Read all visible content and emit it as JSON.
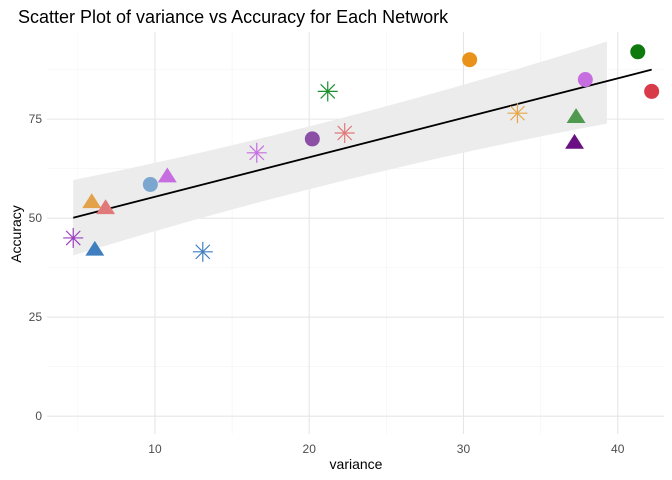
{
  "chart_data": {
    "type": "scatter",
    "title": "Scatter Plot of variance vs Accuracy for Each Network",
    "xlabel": "variance",
    "ylabel": "Accuracy",
    "xlim": [
      3.0,
      43.0
    ],
    "ylim": [
      -4.5,
      97.0
    ],
    "x_ticks": [
      10,
      20,
      30,
      40
    ],
    "y_ticks": [
      0,
      25,
      50,
      75
    ],
    "grid": true,
    "legend": "none",
    "trend_line": {
      "method": "linear",
      "x": [
        4.7,
        42.2
      ],
      "y": [
        50.1,
        87.5
      ],
      "band_lower": [
        40.2,
        74.3
      ],
      "band_upper": [
        60.0,
        94.2
      ],
      "band_x": [
        4.7,
        39.3
      ],
      "color": "#000000",
      "band_color": "#ebebeb"
    },
    "points": [
      {
        "x": 4.7,
        "y": 45,
        "shape": "star",
        "color": "#9b3fbf"
      },
      {
        "x": 5.9,
        "y": 54,
        "shape": "triangle",
        "color": "#e3a14a"
      },
      {
        "x": 6.1,
        "y": 42,
        "shape": "triangle",
        "color": "#3f7fbf"
      },
      {
        "x": 6.8,
        "y": 52.5,
        "shape": "triangle",
        "color": "#e07a7a"
      },
      {
        "x": 9.7,
        "y": 58.5,
        "shape": "circle",
        "color": "#7aa6cf"
      },
      {
        "x": 10.8,
        "y": 60.5,
        "shape": "triangle",
        "color": "#c66ee0"
      },
      {
        "x": 13.1,
        "y": 41.5,
        "shape": "star",
        "color": "#3f7fbf"
      },
      {
        "x": 16.6,
        "y": 66.5,
        "shape": "star",
        "color": "#c66ee0"
      },
      {
        "x": 20.2,
        "y": 70,
        "shape": "circle",
        "color": "#8b4fa6"
      },
      {
        "x": 21.2,
        "y": 82,
        "shape": "star",
        "color": "#1a8f2e"
      },
      {
        "x": 22.3,
        "y": 71.5,
        "shape": "star",
        "color": "#e07a7a"
      },
      {
        "x": 30.4,
        "y": 90,
        "shape": "circle",
        "color": "#e8921a"
      },
      {
        "x": 33.5,
        "y": 76.5,
        "shape": "star",
        "color": "#e8a64a"
      },
      {
        "x": 37.2,
        "y": 69,
        "shape": "triangle",
        "color": "#6a0f84"
      },
      {
        "x": 37.3,
        "y": 75.5,
        "shape": "triangle",
        "color": "#4f9a4f"
      },
      {
        "x": 37.9,
        "y": 85,
        "shape": "circle",
        "color": "#c66ee0"
      },
      {
        "x": 41.3,
        "y": 92,
        "shape": "circle",
        "color": "#0e7a0e"
      },
      {
        "x": 42.2,
        "y": 82,
        "shape": "circle",
        "color": "#d83a4a"
      }
    ]
  }
}
